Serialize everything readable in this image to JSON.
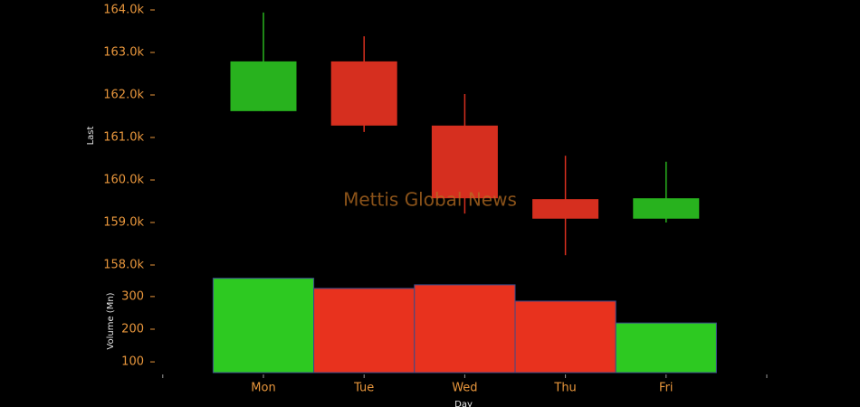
{
  "chart_data": [
    {
      "type": "candlestick",
      "categories": [
        "Mon",
        "Tue",
        "Wed",
        "Thu",
        "Fri"
      ],
      "open": [
        161620,
        162790,
        161280,
        159550,
        159090
      ],
      "high": [
        163940,
        163380,
        162020,
        160570,
        160430
      ],
      "low": [
        161620,
        161130,
        159210,
        158230,
        159000
      ],
      "close": [
        162790,
        161280,
        159570,
        159090,
        159570
      ],
      "up_color": "#28b21e",
      "down_color": "#d62f1f",
      "ylim": [
        158000,
        164000
      ],
      "yticks": [
        {
          "value": 158000,
          "label": "158.0k"
        },
        {
          "value": 159000,
          "label": "159.0k"
        },
        {
          "value": 160000,
          "label": "160.0k"
        },
        {
          "value": 161000,
          "label": "161.0k"
        },
        {
          "value": 162000,
          "label": "162.0k"
        },
        {
          "value": 163000,
          "label": "163.0k"
        },
        {
          "value": 164000,
          "label": "164.0k"
        }
      ],
      "ylabel": "Last",
      "xlabel": "Day",
      "annotation": "Mettis Global News"
    },
    {
      "type": "bar",
      "values": [
        356,
        325,
        336,
        286,
        219
      ],
      "colors": [
        "#2dc921",
        "#e8321e",
        "#e8321e",
        "#e8321e",
        "#2dc921"
      ],
      "ylim": [
        67,
        380
      ],
      "yticks": [
        100,
        200,
        300
      ],
      "ylabel": "Volume (Mn)"
    }
  ]
}
